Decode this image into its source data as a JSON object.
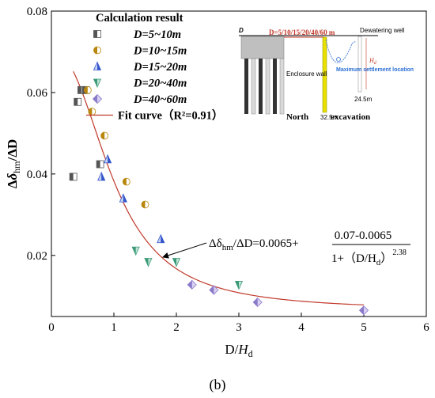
{
  "panel_label": "(b)",
  "chart_data": {
    "type": "scatter",
    "xlabel": "D/H_d",
    "ylabel": "Δδ_hm/ΔD",
    "xlim": [
      0,
      6
    ],
    "ylim": [
      0.005,
      0.08
    ],
    "xticks": [
      "0",
      "1",
      "2",
      "3",
      "4",
      "5",
      "6"
    ],
    "yticks": [
      "0.02",
      "0.04",
      "0.06",
      "0.08"
    ],
    "legend_title": "Calculation result",
    "legend_position": "top-left",
    "series": [
      {
        "name": "D=5~10m",
        "marker": "square-half",
        "color": "#555555",
        "x": [
          0.35,
          0.42,
          0.48,
          0.55,
          0.78
        ],
        "y": [
          0.0393,
          0.0577,
          0.0606,
          0.0606,
          0.0424
        ]
      },
      {
        "name": "D=10~15m",
        "marker": "circle-half",
        "color": "#b8860b",
        "x": [
          0.58,
          0.65,
          0.85,
          1.2,
          1.5
        ],
        "y": [
          0.0606,
          0.0553,
          0.0494,
          0.0381,
          0.0325
        ]
      },
      {
        "name": "D=15~20m",
        "marker": "triangle-up",
        "color": "#3355cc",
        "x": [
          0.9,
          0.8,
          1.15,
          1.75
        ],
        "y": [
          0.0436,
          0.0393,
          0.034,
          0.024
        ]
      },
      {
        "name": "D=20~40m",
        "marker": "triangle-down",
        "color": "#3c9a78",
        "x": [
          1.35,
          1.55,
          2.0,
          3.0
        ],
        "y": [
          0.0212,
          0.0184,
          0.0184,
          0.0128
        ]
      },
      {
        "name": "D=40~60m",
        "marker": "diamond",
        "color": "#8b79c9",
        "x": [
          2.25,
          2.6,
          3.3,
          5.0
        ],
        "y": [
          0.0128,
          0.0115,
          0.0085,
          0.0065
        ]
      }
    ],
    "fit": {
      "name": "Fit curve（R²=0.91）",
      "color": "#c0392b",
      "a": 0.0065,
      "b": 0.07,
      "d": 0.0065,
      "k": 2.38,
      "x_range": [
        0.35,
        5.0
      ]
    },
    "annotation": {
      "lhs": "Δδ",
      "lhs_sub": "hm",
      "lhs_rest": "/ΔD=0.0065+",
      "numerator": "0.07-0.0065",
      "denominator": "1+（D/H",
      "denominator_sub": "d",
      "denominator_close": "）",
      "exponent": "2.38"
    }
  },
  "inset": {
    "title": "D=5/10/15/20/40/60 m",
    "d_label": "D",
    "dewatering_well": "Dewatering well",
    "enclosure_wall": "Enclosure wall",
    "max_settlement": "Maximum settlement location",
    "north": "North",
    "excavation": "excavation",
    "depth1": "32.5m",
    "depth2": "24.5m",
    "hd": "H_d"
  }
}
